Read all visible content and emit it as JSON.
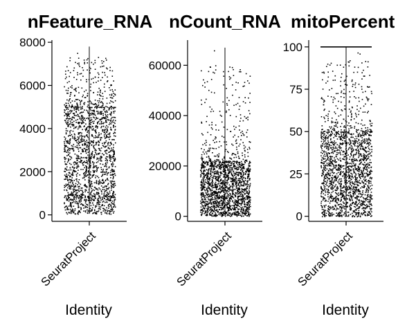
{
  "chart_data": [
    {
      "type": "scatter",
      "title": "nFeature_RNA",
      "xlabel": "Identity",
      "categories": [
        "SeuratProject"
      ],
      "ylim": [
        -300,
        8100
      ],
      "yticks": [
        0,
        2000,
        4000,
        6000,
        8000
      ],
      "ytick_labels": [
        "0",
        "2000",
        "4000",
        "6000",
        "8000"
      ],
      "summary": {
        "min": 50,
        "dense_max": 5000,
        "max": 7800,
        "sparse_min": 700,
        "sparse_max": 1000
      },
      "grid": false,
      "legend": "none"
    },
    {
      "type": "scatter",
      "title": "nCount_RNA",
      "xlabel": "Identity",
      "categories": [
        "SeuratProject"
      ],
      "ylim": [
        -2000,
        70000
      ],
      "yticks": [
        0,
        20000,
        40000,
        60000
      ],
      "ytick_labels": [
        "0",
        "20000",
        "40000",
        "60000"
      ],
      "summary": {
        "min": 200,
        "dense_max": 22000,
        "max": 67000
      },
      "grid": false,
      "legend": "none"
    },
    {
      "type": "scatter",
      "title": "mitoPercent",
      "xlabel": "Identity",
      "categories": [
        "SeuratProject"
      ],
      "ylim": [
        -3,
        104
      ],
      "yticks": [
        0,
        25,
        50,
        75,
        100
      ],
      "ytick_labels": [
        "0",
        "25",
        "50",
        "75",
        "100"
      ],
      "summary": {
        "min": 0,
        "dense_max": 50,
        "max": 100
      },
      "grid": false,
      "legend": "none"
    }
  ]
}
